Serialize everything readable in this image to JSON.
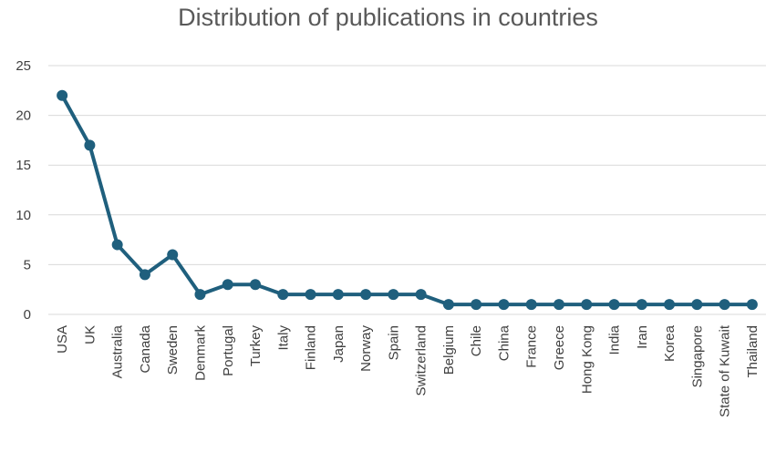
{
  "chart_data": {
    "type": "line",
    "title": "Distribution of publications in countries",
    "xlabel": "",
    "ylabel": "",
    "ylim": [
      0,
      25
    ],
    "yticks": [
      0,
      5,
      10,
      15,
      20,
      25
    ],
    "grid": true,
    "legend": "none",
    "categories": [
      "USA",
      "UK",
      "Australia",
      "Canada",
      "Sweden",
      "Denmark",
      "Portugal",
      "Turkey",
      "Italy",
      "Finland",
      "Japan",
      "Norway",
      "Spain",
      "Switzerland",
      "Belgium",
      "Chile",
      "China",
      "France",
      "Greece",
      "Hong Kong",
      "India",
      "Iran",
      "Korea",
      "Singapore",
      "State of Kuwait",
      "Thailand"
    ],
    "series": [
      {
        "values": [
          22,
          17,
          7,
          4,
          6,
          2,
          3,
          3,
          2,
          2,
          2,
          2,
          2,
          2,
          1,
          1,
          1,
          1,
          1,
          1,
          1,
          1,
          1,
          1,
          1,
          1
        ]
      }
    ],
    "colors": {
      "line": "#1f5f7d",
      "grid": "#d9d9d9",
      "text": "#404040"
    }
  }
}
